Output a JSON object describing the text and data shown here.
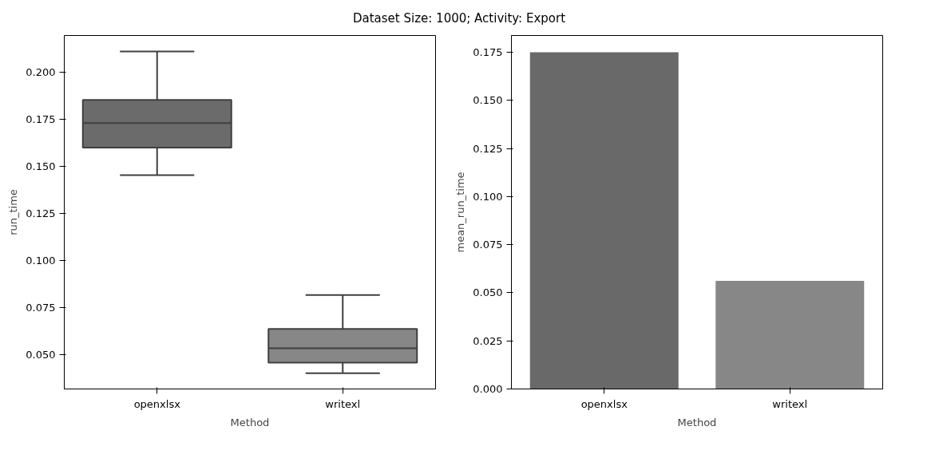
{
  "chart_data": [
    {
      "type": "box",
      "title": "Dataset Size: 1000; Activity: Export",
      "categories": [
        "openxlsx",
        "writexl"
      ],
      "xlabel": "Method",
      "ylabel": "run_time",
      "boxes": [
        {
          "low": 0.1454,
          "q1": 0.16,
          "median": 0.1731,
          "q3": 0.1853,
          "high": 0.211
        },
        {
          "low": 0.0404,
          "q1": 0.046,
          "median": 0.0536,
          "q3": 0.0638,
          "high": 0.0818
        }
      ],
      "colors": [
        "#6b6b6b",
        "#878787"
      ],
      "ylim": [
        0.032,
        0.2195
      ],
      "yticks": [
        {
          "value": 0.05,
          "label": "0.050"
        },
        {
          "value": 0.075,
          "label": "0.075"
        },
        {
          "value": 0.1,
          "label": "0.100"
        },
        {
          "value": 0.125,
          "label": "0.125"
        },
        {
          "value": 0.15,
          "label": "0.150"
        },
        {
          "value": 0.175,
          "label": "0.175"
        },
        {
          "value": 0.2,
          "label": "0.200"
        }
      ],
      "grid": false
    },
    {
      "type": "bar",
      "categories": [
        "openxlsx",
        "writexl"
      ],
      "xlabel": "Method",
      "ylabel": "mean_run_time",
      "values": [
        0.175,
        0.0562
      ],
      "colors": [
        "#696969",
        "#878787"
      ],
      "ylim": [
        0,
        0.18375
      ],
      "yticks": [
        {
          "value": 0,
          "label": "0.000"
        },
        {
          "value": 0.025,
          "label": "0.025"
        },
        {
          "value": 0.05,
          "label": "0.050"
        },
        {
          "value": 0.075,
          "label": "0.075"
        },
        {
          "value": 0.1,
          "label": "0.100"
        },
        {
          "value": 0.125,
          "label": "0.125"
        },
        {
          "value": 0.15,
          "label": "0.150"
        },
        {
          "value": 0.175,
          "label": "0.175"
        }
      ],
      "grid": false
    }
  ]
}
